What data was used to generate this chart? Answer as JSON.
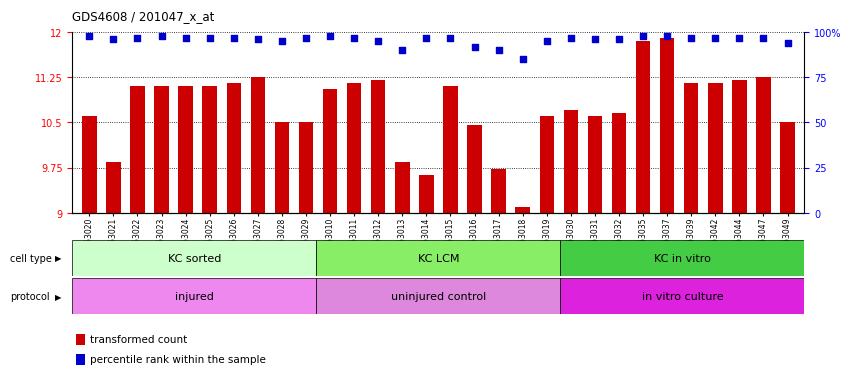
{
  "title": "GDS4608 / 201047_x_at",
  "samples": [
    "GSM753020",
    "GSM753021",
    "GSM753022",
    "GSM753023",
    "GSM753024",
    "GSM753025",
    "GSM753026",
    "GSM753027",
    "GSM753028",
    "GSM753029",
    "GSM753010",
    "GSM753011",
    "GSM753012",
    "GSM753013",
    "GSM753014",
    "GSM753015",
    "GSM753016",
    "GSM753017",
    "GSM753018",
    "GSM753019",
    "GSM753030",
    "GSM753031",
    "GSM753032",
    "GSM753035",
    "GSM753037",
    "GSM753039",
    "GSM753042",
    "GSM753044",
    "GSM753047",
    "GSM753049"
  ],
  "bar_values": [
    10.6,
    9.85,
    11.1,
    11.1,
    11.1,
    11.1,
    11.15,
    11.25,
    10.5,
    10.5,
    11.05,
    11.15,
    11.2,
    9.85,
    9.62,
    11.1,
    10.45,
    9.72,
    9.1,
    10.6,
    10.7,
    10.6,
    10.65,
    11.85,
    11.9,
    11.15,
    11.15,
    11.2,
    11.25,
    10.5
  ],
  "percentile_values": [
    98,
    96,
    97,
    98,
    97,
    97,
    97,
    96,
    95,
    97,
    98,
    97,
    95,
    90,
    97,
    97,
    92,
    90,
    85,
    95,
    97,
    96,
    96,
    98,
    98,
    97,
    97,
    97,
    97,
    94
  ],
  "bar_color": "#cc0000",
  "percentile_color": "#0000cc",
  "ylim": [
    9.0,
    12.0
  ],
  "yticks": [
    9.0,
    9.75,
    10.5,
    11.25,
    12.0
  ],
  "ytick_labels": [
    "9",
    "9.75",
    "10.5",
    "11.25",
    "12"
  ],
  "right_yticks": [
    0,
    25,
    50,
    75,
    100
  ],
  "right_ytick_labels": [
    "0",
    "25",
    "50",
    "75",
    "100%"
  ],
  "group_boundaries": [
    0,
    10,
    20,
    30
  ],
  "cell_type_labels": [
    "KC sorted",
    "KC LCM",
    "KC in vitro"
  ],
  "cell_type_colors": [
    "#ccffcc",
    "#88ee66",
    "#44cc44"
  ],
  "protocol_labels": [
    "injured",
    "uninjured control",
    "in vitro culture"
  ],
  "protocol_colors": [
    "#ee88ee",
    "#ee88ee",
    "#ee22ee"
  ],
  "background_color": "#ffffff"
}
